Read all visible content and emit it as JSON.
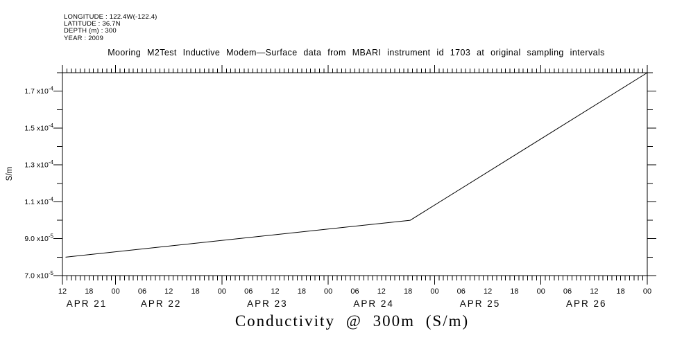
{
  "header": {
    "lines": [
      "LONGITUDE : 122.4W(-122.4)",
      "LATITUDE : 36.7N",
      "DEPTH (m) : 300",
      "YEAR : 2009"
    ]
  },
  "title": "Mooring M2Test Inductive Modem—Surface data from MBARI instrument id 1703 at original sampling intervals",
  "footer_title": "Conductivity @ 300m (S/m)",
  "axes": {
    "ylabel": "S/m",
    "y_tick_labels": [
      {
        "text": "7.0 x10",
        "sup": "-5"
      },
      {
        "text": "9.0 x10",
        "sup": "-5"
      },
      {
        "text": "1.1 x10",
        "sup": "-4"
      },
      {
        "text": "1.3 x10",
        "sup": "-4"
      },
      {
        "text": "1.5 x10",
        "sup": "-4"
      },
      {
        "text": "1.7 x10",
        "sup": "-4"
      }
    ],
    "x_hour_labels": [
      "12",
      "18",
      "00",
      "06",
      "12",
      "18",
      "00",
      "06",
      "12",
      "18",
      "00",
      "06",
      "12",
      "18",
      "00",
      "06",
      "12",
      "18",
      "00",
      "06",
      "12",
      "18",
      "00"
    ],
    "x_date_labels": [
      "APR 21",
      "APR 22",
      "APR 23",
      "APR 24",
      "APR 25",
      "APR 26"
    ]
  },
  "chart_data": {
    "type": "line",
    "title": "Mooring M2Test Inductive Modem—Surface data from MBARI instrument id 1703 at original sampling intervals",
    "xlabel": "",
    "ylabel": "S/m",
    "footer_label": "Conductivity @ 300m (S/m)",
    "x_range": [
      "APR 21 12:00",
      "APR 27 00:00"
    ],
    "x_span_hours": 132,
    "x_major_tick_hours": 6,
    "x_minor_tick_hours": 1,
    "ylim": [
      7e-05,
      0.00018
    ],
    "y_major_ticks": [
      7e-05,
      9e-05,
      0.00011,
      0.00013,
      0.00015,
      0.00017
    ],
    "y_minor_step": 1e-05,
    "grid": false,
    "legend": false,
    "line_color": "#000000",
    "series": [
      {
        "name": "Conductivity @ 300m",
        "units": "S/m",
        "points": [
          {
            "time": "APR 21 ~12:40",
            "hours_from_start": 0.7,
            "value": 8e-05
          },
          {
            "time": "APR 24 ~18:30",
            "hours_from_start": 78.5,
            "value": 0.0001
          },
          {
            "time": "APR 27 00:00",
            "hours_from_start": 132.0,
            "value": 0.00018
          }
        ]
      }
    ]
  },
  "colors": {
    "background": "#ffffff",
    "foreground": "#000000"
  }
}
